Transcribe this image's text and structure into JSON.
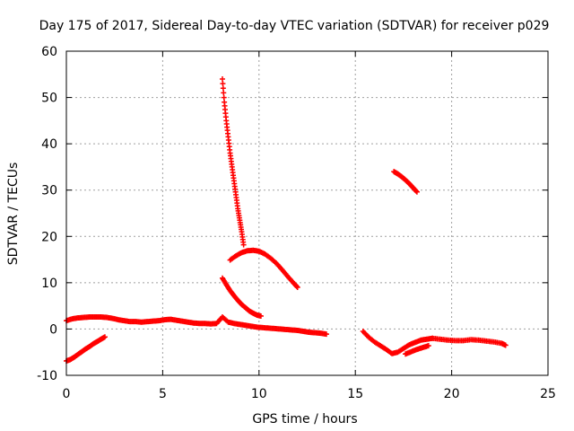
{
  "chart_data": {
    "type": "scatter",
    "title": "Day 175 of 2017, Sidereal Day-to-day VTEC variation (SDTVAR) for receiver p029",
    "xlabel": "GPS time / hours",
    "ylabel": "SDTVAR / TECUs",
    "xlim": [
      0,
      25
    ],
    "ylim": [
      -10,
      60
    ],
    "x_ticks": [
      "0",
      "5",
      "10",
      "15",
      "20",
      "25"
    ],
    "y_ticks": [
      "-10",
      "0",
      "10",
      "20",
      "30",
      "40",
      "50",
      "60"
    ],
    "grid": true,
    "legend": "none",
    "marker": "plus",
    "color": "#ff0000",
    "series": [
      {
        "x": [
          0.0,
          0.3,
          0.6,
          0.9,
          1.2,
          1.5,
          1.8,
          2.1,
          2.4,
          2.7,
          3.0,
          3.3,
          3.6,
          3.9,
          4.2,
          4.5,
          4.8,
          5.1,
          5.4,
          5.7,
          6.0,
          6.3,
          6.6,
          6.9,
          7.2,
          7.5,
          7.8,
          8.1,
          8.4,
          8.7,
          9.0,
          9.3,
          9.6,
          9.9,
          10.2,
          10.5,
          10.8,
          11.1,
          11.4,
          11.7,
          12.0,
          12.3,
          12.6,
          12.9,
          13.2,
          13.5
        ],
        "y": [
          1.8,
          2.2,
          2.4,
          2.5,
          2.6,
          2.6,
          2.6,
          2.5,
          2.3,
          2.0,
          1.8,
          1.6,
          1.6,
          1.5,
          1.6,
          1.7,
          1.8,
          2.0,
          2.1,
          1.9,
          1.7,
          1.5,
          1.3,
          1.2,
          1.2,
          1.1,
          1.2,
          2.6,
          1.5,
          1.2,
          1.0,
          0.8,
          0.6,
          0.4,
          0.3,
          0.2,
          0.1,
          0.0,
          -0.1,
          -0.2,
          -0.3,
          -0.5,
          -0.7,
          -0.8,
          -0.9,
          -1.1
        ]
      },
      {
        "x": [
          0.0,
          0.2,
          0.4,
          0.6,
          0.8,
          1.0,
          1.2,
          1.4,
          1.6,
          1.8,
          2.0
        ],
        "y": [
          -6.9,
          -6.6,
          -6.1,
          -5.5,
          -4.9,
          -4.3,
          -3.8,
          -3.2,
          -2.7,
          -2.2,
          -1.7
        ]
      },
      {
        "x": [
          8.1,
          8.2,
          8.3,
          8.4,
          8.5,
          8.6,
          8.7,
          8.8,
          8.9,
          9.0,
          9.1,
          9.2
        ],
        "y": [
          54.0,
          49.0,
          45.0,
          41.5,
          38.0,
          35.0,
          32.0,
          29.0,
          26.0,
          23.5,
          21.0,
          18.2
        ]
      },
      {
        "x": [
          8.5,
          8.8,
          9.1,
          9.4,
          9.7,
          10.0,
          10.3,
          10.6,
          10.9,
          11.2,
          11.5,
          11.8,
          12.0
        ],
        "y": [
          14.9,
          15.8,
          16.5,
          16.9,
          17.0,
          16.8,
          16.2,
          15.3,
          14.2,
          12.8,
          11.3,
          9.9,
          9.0
        ]
      },
      {
        "x": [
          8.1,
          8.3,
          8.5,
          8.7,
          8.9,
          9.1,
          9.3,
          9.5,
          9.7,
          9.9,
          10.1
        ],
        "y": [
          11.0,
          9.6,
          8.3,
          7.2,
          6.2,
          5.3,
          4.6,
          3.9,
          3.4,
          3.0,
          2.8
        ]
      },
      {
        "x": [
          15.4,
          15.7,
          16.0,
          16.3,
          16.6,
          16.9,
          17.2,
          17.5,
          17.8,
          18.1,
          18.4,
          18.7,
          19.0
        ],
        "y": [
          -0.5,
          -1.8,
          -2.8,
          -3.6,
          -4.4,
          -5.3,
          -5.0,
          -4.2,
          -3.4,
          -2.9,
          -2.4,
          -2.2,
          -2.0
        ]
      },
      {
        "x": [
          17.6,
          17.9,
          18.2,
          18.5,
          18.8
        ],
        "y": [
          -5.4,
          -4.9,
          -4.4,
          -4.0,
          -3.6
        ]
      },
      {
        "x": [
          19.0,
          19.4,
          19.8,
          20.2,
          20.6,
          21.0,
          21.4,
          21.8,
          22.2,
          22.6,
          22.8
        ],
        "y": [
          -2.0,
          -2.2,
          -2.4,
          -2.5,
          -2.5,
          -2.3,
          -2.4,
          -2.6,
          -2.8,
          -3.1,
          -3.5
        ]
      },
      {
        "x": [
          17.0,
          17.2,
          17.4,
          17.6,
          17.8,
          18.0,
          18.2
        ],
        "y": [
          34.0,
          33.5,
          32.9,
          32.2,
          31.4,
          30.5,
          29.6
        ]
      }
    ]
  }
}
